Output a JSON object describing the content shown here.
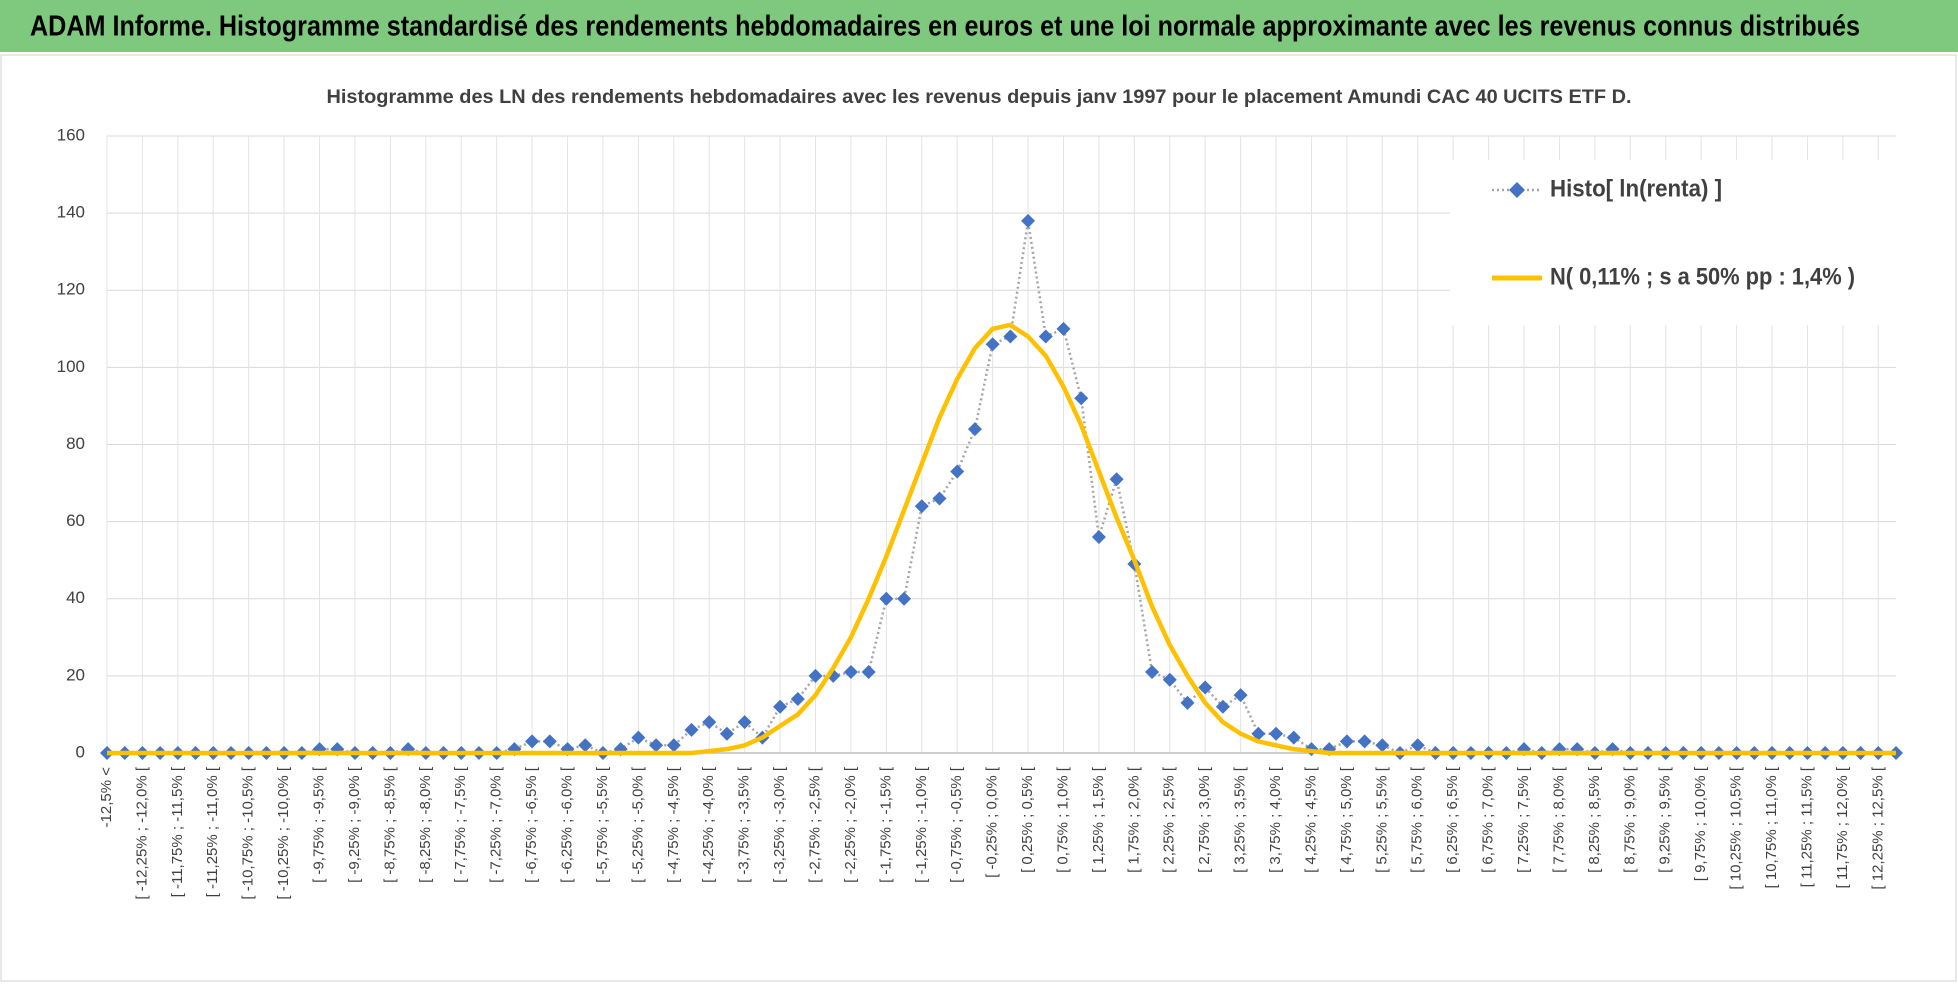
{
  "header": {
    "title": "ADAM Informe. Histogramme standardisé des rendements hebdomadaires en euros et une loi normale approximante avec les revenus connus distribués"
  },
  "chart_data": {
    "type": "line",
    "title": "Histogramme des LN des rendements hebdomadaires avec les revenus depuis janv 1997 pour le placement Amundi CAC 40 UCITS ETF D.",
    "categories": [
      "-12,5% <",
      null,
      "[ -12,25% ; -12,0% [",
      null,
      "[ -11,75% ; -11,5% [",
      null,
      "[ -11,25% ; -11,0% [",
      null,
      "[ -10,75% ; -10,5% [",
      null,
      "[ -10,25% ; -10,0% [",
      null,
      "[ -9,75% ; -9,5% [",
      null,
      "[ -9,25% ; -9,0% [",
      null,
      "[ -8,75% ; -8,5% [",
      null,
      "[ -8,25% ; -8,0% [",
      null,
      "[ -7,75% ; -7,5% [",
      null,
      "[ -7,25% ; -7,0% [",
      null,
      "[ -6,75% ; -6,5% [",
      null,
      "[ -6,25% ; -6,0% [",
      null,
      "[ -5,75% ; -5,5% [",
      null,
      "[ -5,25% ; -5,0% [",
      null,
      "[ -4,75% ; -4,5% [",
      null,
      "[ -4,25% ; -4,0% [",
      null,
      "[ -3,75% ; -3,5% [",
      null,
      "[ -3,25% ; -3,0% [",
      null,
      "[ -2,75% ; -2,5% [",
      null,
      "[ -2,25% ; -2,0% [",
      null,
      "[ -1,75% ; -1,5% [",
      null,
      "[ -1,25% ; -1,0% [",
      null,
      "[ -0,75% ; -0,5% [",
      null,
      "[ -0,25% ; 0,0% [",
      null,
      "[ 0,25% ; 0,5% [",
      null,
      "[ 0,75% ; 1,0% [",
      null,
      "[ 1,25% ; 1,5% [",
      null,
      "[ 1,75% ; 2,0% [",
      null,
      "[ 2,25% ; 2,5% [",
      null,
      "[ 2,75% ; 3,0% [",
      null,
      "[ 3,25% ; 3,5% [",
      null,
      "[ 3,75% ; 4,0% [",
      null,
      "[ 4,25% ; 4,5% [",
      null,
      "[ 4,75% ; 5,0% [",
      null,
      "[ 5,25% ; 5,5% [",
      null,
      "[ 5,75% ; 6,0% [",
      null,
      "[ 6,25% ; 6,5% [",
      null,
      "[ 6,75% ; 7,0% [",
      null,
      "[ 7,25% ; 7,5% [",
      null,
      "[ 7,75% ; 8,0% [",
      null,
      "[ 8,25% ; 8,5% [",
      null,
      "[ 8,75% ; 9,0% [",
      null,
      "[ 9,25% ; 9,5% [",
      null,
      "[ 9,75% ; 10,0% [",
      null,
      "[ 10,25% ; 10,5% [",
      null,
      "[ 10,75% ; 11,0% [",
      null,
      "[ 11,25% ; 11,5% [",
      null,
      "[ 11,75% ; 12,0% [",
      null,
      "[ 12,25% ; 12,5% [",
      null
    ],
    "series": [
      {
        "name": "Histo[ ln(renta) ]",
        "color": "#4472c4",
        "line_color": "#a5a5a5",
        "marker": "diamond",
        "values": [
          0,
          0,
          0,
          0,
          0,
          0,
          0,
          0,
          0,
          0,
          0,
          0,
          1,
          1,
          0,
          0,
          0,
          1,
          0,
          0,
          0,
          0,
          0,
          1,
          3,
          3,
          1,
          2,
          0,
          1,
          4,
          2,
          2,
          6,
          8,
          5,
          8,
          4,
          12,
          14,
          20,
          20,
          21,
          21,
          40,
          40,
          64,
          66,
          73,
          84,
          106,
          108,
          138,
          108,
          110,
          92,
          56,
          71,
          49,
          21,
          19,
          13,
          17,
          12,
          15,
          5,
          5,
          4,
          1,
          1,
          3,
          3,
          2,
          0,
          2,
          0,
          0,
          0,
          0,
          0,
          1,
          0,
          1,
          1,
          0,
          1,
          0,
          0,
          0,
          0,
          0,
          0,
          0,
          0,
          0,
          0,
          0,
          0,
          0,
          0,
          0,
          0
        ]
      },
      {
        "name": "N( 0,11% ; s a 50% pp : 1,4% )",
        "color": "#ffc000",
        "values": [
          0,
          0,
          0,
          0,
          0,
          0,
          0,
          0,
          0,
          0,
          0,
          0,
          0,
          0,
          0,
          0,
          0,
          0,
          0,
          0,
          0,
          0,
          0,
          0,
          0,
          0,
          0,
          0,
          0,
          0,
          0,
          0,
          0,
          0,
          0.5,
          1,
          2,
          4,
          7,
          10,
          15,
          22,
          30,
          40,
          51,
          63,
          75,
          87,
          97,
          105,
          110,
          111,
          108,
          103,
          95,
          85,
          73,
          61,
          50,
          38,
          28,
          20,
          13,
          8,
          5,
          3,
          2,
          1,
          0.5,
          0,
          0,
          0,
          0,
          0,
          0,
          0,
          0,
          0,
          0,
          0,
          0,
          0,
          0,
          0,
          0,
          0,
          0,
          0,
          0,
          0,
          0,
          0,
          0,
          0,
          0,
          0,
          0,
          0,
          0,
          0,
          0,
          0
        ]
      }
    ],
    "ylim": [
      0,
      160
    ],
    "yticks": [
      0,
      20,
      40,
      60,
      80,
      100,
      120,
      140,
      160
    ],
    "grid": true,
    "legend": "top-right"
  }
}
